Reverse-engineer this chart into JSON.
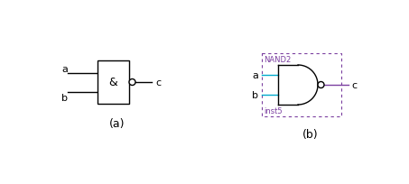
{
  "bg_color": "#ffffff",
  "label_a_left": "a",
  "label_b_left": "b",
  "label_c_left": "c",
  "label_and_symbol": "&",
  "label_a_right": "a",
  "label_b_right": "b",
  "label_c_right": "c",
  "label_nand2": "NAND2",
  "label_inst5": "inst5",
  "label_caption_a": "(a)",
  "label_caption_b": "(b)",
  "gate_color": "#000000",
  "wire_color_left": "#000000",
  "wire_color_right_a": "#00aacc",
  "wire_color_right_b": "#7b3fa0",
  "dashed_box_color": "#7b3fa0",
  "nand_label_color": "#7b3fa0"
}
